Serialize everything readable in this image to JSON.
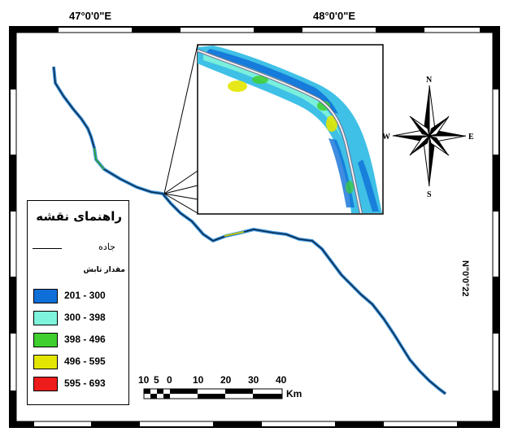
{
  "map": {
    "graticule_labels": {
      "lon_left": "47°0'0\"E",
      "lon_right": "48°0'0\"E",
      "lat_right": "N\"0'0°22"
    }
  },
  "legend": {
    "title": "راهنمای نقشه",
    "road_label": "جاده",
    "subtitle": "مقدار تابش",
    "classes": [
      {
        "label": "201 - 300",
        "color": "#0f6fd8"
      },
      {
        "label": "300 - 398",
        "color": "#7ff4dc"
      },
      {
        "label": "398 - 496",
        "color": "#3fcf2f"
      },
      {
        "label": "496 - 595",
        "color": "#e3e600"
      },
      {
        "label": "595 - 693",
        "color": "#ee1b1b"
      }
    ]
  },
  "north_arrow": {
    "n": "N",
    "s": "S",
    "e": "E",
    "w": "W"
  },
  "scale_bar": {
    "ticks": [
      "10",
      "5",
      "0",
      "10",
      "20",
      "30",
      "40"
    ],
    "unit": "Km"
  },
  "colors": {
    "background": "#ffffff",
    "road_inset": "#f2f2f2"
  }
}
